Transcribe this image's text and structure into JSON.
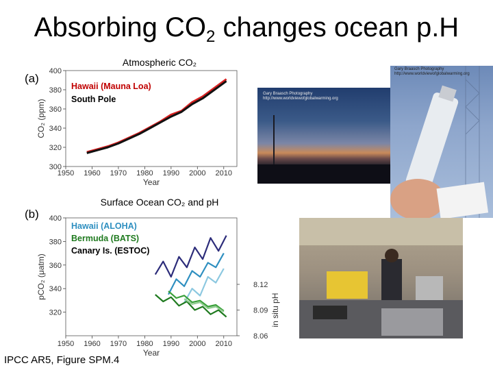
{
  "slide": {
    "title_main": "Absorbing CO",
    "title_sub": "2",
    "title_rest": " changes ocean p.H",
    "caption": "IPCC AR5, Figure SPM.4"
  },
  "photos": {
    "credit_1": "Gary Braasch Photography\nhttp://www.worldviewofglobalwarming.org",
    "credit_2": "Gary Braasch Photography http://www.worldviewofglobalwarming.org"
  },
  "chart_data": [
    {
      "type": "line",
      "panel_label": "(a)",
      "title": "Atmospheric CO2",
      "xlabel": "Year",
      "ylabel": "CO2 (ppm)",
      "xlim": [
        1950,
        2015
      ],
      "ylim": [
        300,
        400
      ],
      "xticks": [
        1950,
        1960,
        1970,
        1980,
        1990,
        2000,
        2010
      ],
      "yticks": [
        300,
        320,
        340,
        360,
        380,
        400
      ],
      "legend": [
        {
          "label": "Hawaii (Mauna Loa)",
          "color": "#c00000"
        },
        {
          "label": "South Pole",
          "color": "#000000"
        }
      ],
      "series": [
        {
          "name": "Hawaii (Mauna Loa)",
          "color": "#d62020",
          "x": [
            1958,
            1962,
            1966,
            1970,
            1974,
            1978,
            1982,
            1986,
            1990,
            1994,
            1998,
            2002,
            2006,
            2011
          ],
          "y": [
            315,
            318,
            321,
            325,
            330,
            335,
            341,
            347,
            354,
            358,
            367,
            373,
            381,
            391
          ]
        },
        {
          "name": "South Pole",
          "color": "#111111",
          "x": [
            1958,
            1962,
            1966,
            1970,
            1974,
            1978,
            1982,
            1986,
            1990,
            1994,
            1998,
            2002,
            2006,
            2011
          ],
          "y": [
            314,
            317,
            320,
            324,
            329,
            334,
            340,
            346,
            352,
            357,
            365,
            371,
            379,
            389
          ]
        }
      ]
    },
    {
      "type": "line",
      "panel_label": "(b)",
      "title": "Surface Ocean CO2 and pH",
      "xlabel": "Year",
      "ylabel": "pCO2 (μatm)",
      "ylabel_right": "in situ pH",
      "xlim": [
        1950,
        2015
      ],
      "ylim": [
        300,
        400
      ],
      "ylim_right": [
        8.06,
        8.12
      ],
      "xticks": [
        1950,
        1960,
        1970,
        1980,
        1990,
        2000,
        2010
      ],
      "yticks": [
        320,
        340,
        360,
        380,
        400
      ],
      "yticks_right": [
        8.06,
        8.09,
        8.12
      ],
      "legend": [
        {
          "label": "Hawaii (ALOHA)",
          "color": "#2e8fc0"
        },
        {
          "label": "Bermuda (BATS)",
          "color": "#1f7a1f"
        },
        {
          "label": "Canary Is. (ESTOC)",
          "color": "#000000"
        }
      ],
      "series": [
        {
          "name": "Bermuda (BATS)",
          "color": "#2c2c7a",
          "axis": "left",
          "x": [
            1984,
            1987,
            1990,
            1993,
            1996,
            1999,
            2002,
            2005,
            2008,
            2011
          ],
          "y": [
            352,
            363,
            350,
            367,
            358,
            375,
            365,
            383,
            372,
            385
          ]
        },
        {
          "name": "Hawaii (ALOHA)",
          "color": "#2e8fc0",
          "axis": "left",
          "x": [
            1989,
            1992,
            1995,
            1998,
            2001,
            2004,
            2007,
            2010
          ],
          "y": [
            335,
            348,
            342,
            355,
            350,
            362,
            358,
            370
          ]
        },
        {
          "name": "Canary Is. (ESTOC)",
          "color": "#8cc8e0",
          "axis": "left",
          "x": [
            1995,
            1998,
            2001,
            2004,
            2007,
            2010
          ],
          "y": [
            328,
            340,
            334,
            350,
            345,
            357
          ]
        },
        {
          "name": "Bermuda (BATS) pH",
          "color": "#1f7a1f",
          "axis": "right",
          "x": [
            1984,
            1987,
            1990,
            1993,
            1996,
            1999,
            2002,
            2005,
            2008,
            2011
          ],
          "y": [
            8.108,
            8.1,
            8.105,
            8.095,
            8.1,
            8.09,
            8.094,
            8.085,
            8.09,
            8.082
          ]
        },
        {
          "name": "Hawaii (ALOHA) pH",
          "color": "#3aa03a",
          "axis": "right",
          "x": [
            1989,
            1992,
            1995,
            1998,
            2001,
            2004,
            2007,
            2010
          ],
          "y": [
            8.112,
            8.104,
            8.107,
            8.099,
            8.101,
            8.094,
            8.096,
            8.089
          ]
        },
        {
          "name": "Canary Is. (ESTOC) pH",
          "color": "#90cc90",
          "axis": "right",
          "x": [
            1995,
            1998,
            2001,
            2004,
            2007,
            2010
          ],
          "y": [
            8.103,
            8.097,
            8.099,
            8.092,
            8.094,
            8.088
          ]
        }
      ]
    }
  ]
}
